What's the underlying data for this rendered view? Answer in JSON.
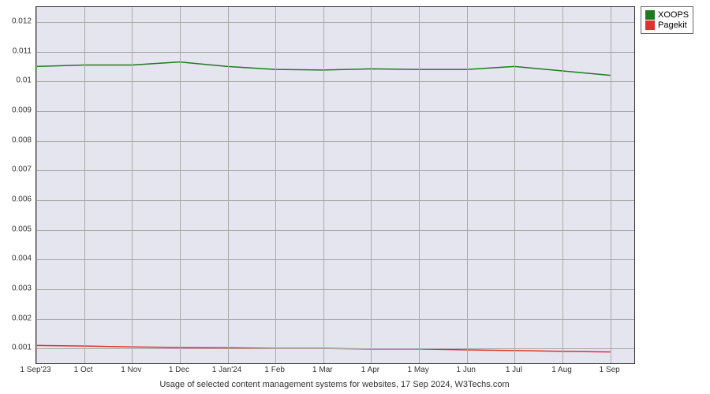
{
  "chart": {
    "type": "line",
    "caption": "Usage of selected content management systems for websites, 17 Sep 2024, W3Techs.com",
    "background_color": "#e5e5f0",
    "grid_color": "#aaaaaa",
    "border_color": "#333333",
    "y_axis": {
      "min": 0.0005,
      "max": 0.0125,
      "ticks": [
        0.001,
        0.002,
        0.003,
        0.004,
        0.005,
        0.006,
        0.007,
        0.008,
        0.009,
        0.01,
        0.011,
        0.012
      ],
      "tick_labels": [
        "0.001",
        "0.002",
        "0.003",
        "0.004",
        "0.005",
        "0.006",
        "0.007",
        "0.008",
        "0.009",
        "0.01",
        "0.011",
        "0.012"
      ]
    },
    "x_axis": {
      "ticks": [
        0,
        1,
        2,
        3,
        4,
        5,
        6,
        7,
        8,
        9,
        10,
        11,
        12
      ],
      "tick_labels": [
        "1 Sep'23",
        "1 Oct",
        "1 Nov",
        "1 Dec",
        "1 Jan'24",
        "1 Feb",
        "1 Mar",
        "1 Apr",
        "1 May",
        "1 Jun",
        "1 Jul",
        "1 Aug",
        "1 Sep"
      ],
      "range_max": 12.5
    },
    "series": [
      {
        "name": "XOOPS",
        "color": "#1f7a1f",
        "line_width": 1.5,
        "data": [
          0.0105,
          0.01055,
          0.01055,
          0.01065,
          0.0105,
          0.0104,
          0.01038,
          0.01042,
          0.0104,
          0.0104,
          0.0105,
          0.01035,
          0.0102
        ]
      },
      {
        "name": "Pagekit",
        "color": "#e03030",
        "line_width": 1.5,
        "data": [
          0.0011,
          0.00108,
          0.00105,
          0.00103,
          0.00102,
          0.001,
          0.001,
          0.00098,
          0.00098,
          0.00095,
          0.00093,
          0.0009,
          0.00088
        ]
      }
    ],
    "legend": {
      "items": [
        {
          "label": "XOOPS",
          "color": "#1f7a1f"
        },
        {
          "label": "Pagekit",
          "color": "#e03030"
        }
      ]
    },
    "label_fontsize": 10,
    "caption_fontsize": 11,
    "legend_fontsize": 11
  }
}
